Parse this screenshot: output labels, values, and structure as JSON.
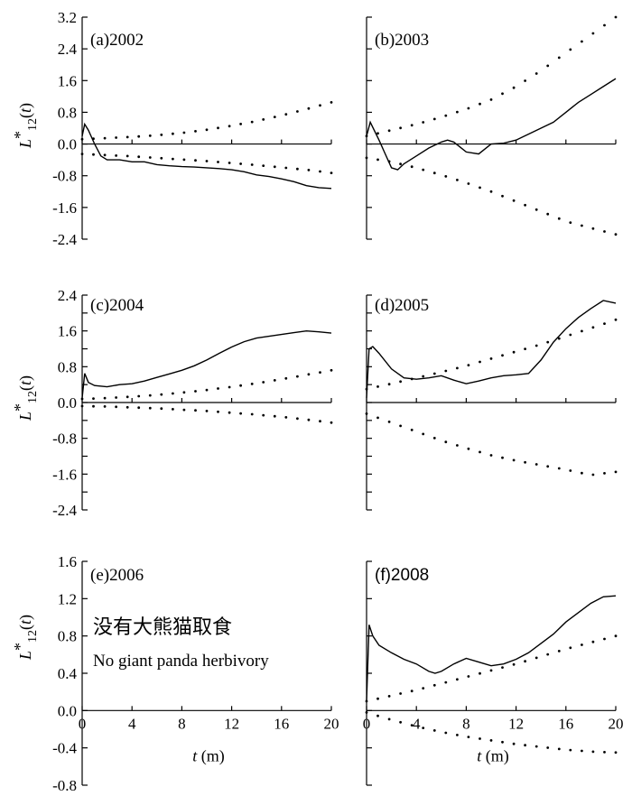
{
  "chart_data": [
    {
      "type": "line",
      "panel": "(a)2002",
      "ylabel": "L*12(t)",
      "xlim": [
        0,
        20
      ],
      "ylim": [
        -2.4,
        3.2
      ],
      "yticks": [
        "3.2",
        "2.4",
        "1.6",
        "0.8",
        "0.0",
        "-0.8",
        "-1.6",
        "-2.4"
      ],
      "xticks": [],
      "zero_line": true,
      "series": [
        {
          "style": "solid",
          "x": [
            0,
            0.2,
            0.5,
            1,
            1.5,
            2,
            3,
            4,
            5,
            6,
            7,
            8,
            9,
            10,
            11,
            12,
            13,
            14,
            15,
            16,
            17,
            18,
            19,
            20
          ],
          "values": [
            0.2,
            0.5,
            0.35,
            0.0,
            -0.3,
            -0.4,
            -0.4,
            -0.45,
            -0.45,
            -0.52,
            -0.55,
            -0.57,
            -0.58,
            -0.6,
            -0.62,
            -0.65,
            -0.7,
            -0.78,
            -0.82,
            -0.88,
            -0.95,
            -1.05,
            -1.1,
            -1.12
          ]
        },
        {
          "style": "dotted",
          "x": [
            0,
            2,
            4,
            6,
            8,
            10,
            12,
            14,
            16,
            18,
            20
          ],
          "values": [
            0.12,
            0.15,
            0.18,
            0.22,
            0.28,
            0.36,
            0.46,
            0.58,
            0.72,
            0.88,
            1.05
          ]
        },
        {
          "style": "dotted",
          "x": [
            0,
            2,
            4,
            6,
            8,
            10,
            12,
            14,
            16,
            18,
            20
          ],
          "values": [
            -0.25,
            -0.28,
            -0.31,
            -0.35,
            -0.39,
            -0.43,
            -0.48,
            -0.53,
            -0.59,
            -0.65,
            -0.73
          ]
        }
      ]
    },
    {
      "type": "line",
      "panel": "(b)2003",
      "ylabel": "",
      "xlim": [
        0,
        20
      ],
      "ylim": [
        -2.4,
        3.2
      ],
      "yticks": [],
      "xticks": [],
      "zero_line": true,
      "series": [
        {
          "style": "solid",
          "x": [
            0,
            0.3,
            1,
            1.5,
            2,
            2.5,
            3,
            4,
            5,
            6,
            6.5,
            7,
            8,
            9,
            10,
            11,
            12,
            13,
            14,
            15,
            16,
            17,
            18,
            19,
            20
          ],
          "values": [
            0.2,
            0.55,
            0.1,
            -0.25,
            -0.6,
            -0.65,
            -0.5,
            -0.3,
            -0.1,
            0.05,
            0.1,
            0.05,
            -0.2,
            -0.25,
            0.0,
            0.02,
            0.1,
            0.25,
            0.4,
            0.55,
            0.8,
            1.05,
            1.25,
            1.45,
            1.65
          ]
        },
        {
          "style": "dotted",
          "x": [
            0,
            2,
            4,
            6,
            8,
            10,
            12,
            14,
            16,
            18,
            20
          ],
          "values": [
            0.2,
            0.35,
            0.5,
            0.68,
            0.88,
            1.12,
            1.45,
            1.85,
            2.3,
            2.75,
            3.2
          ]
        },
        {
          "style": "dotted",
          "x": [
            0,
            2,
            4,
            6,
            8,
            10,
            12,
            14,
            16,
            18,
            20
          ],
          "values": [
            -0.35,
            -0.45,
            -0.6,
            -0.78,
            -0.98,
            -1.2,
            -1.45,
            -1.7,
            -1.95,
            -2.12,
            -2.28
          ]
        }
      ]
    },
    {
      "type": "line",
      "panel": "(c)2004",
      "ylabel": "L*12(t)",
      "xlim": [
        0,
        20
      ],
      "ylim": [
        -2.4,
        2.4
      ],
      "yticks": [
        "2.4",
        "1.6",
        "0.8",
        "0.0",
        "-0.8",
        "-1.6",
        "-2.4"
      ],
      "xticks": [],
      "zero_line": true,
      "series": [
        {
          "style": "solid",
          "x": [
            0,
            0.2,
            0.5,
            1,
            2,
            3,
            4,
            5,
            6,
            7,
            8,
            9,
            10,
            11,
            12,
            13,
            14,
            15,
            16,
            17,
            18,
            19,
            20
          ],
          "values": [
            0.1,
            0.65,
            0.45,
            0.38,
            0.35,
            0.4,
            0.42,
            0.48,
            0.56,
            0.64,
            0.72,
            0.82,
            0.95,
            1.1,
            1.24,
            1.36,
            1.44,
            1.48,
            1.52,
            1.56,
            1.6,
            1.58,
            1.55
          ]
        },
        {
          "style": "dotted",
          "x": [
            0,
            2,
            4,
            6,
            8,
            10,
            12,
            14,
            16,
            18,
            20
          ],
          "values": [
            0.08,
            0.1,
            0.13,
            0.17,
            0.22,
            0.28,
            0.35,
            0.43,
            0.52,
            0.62,
            0.72
          ]
        },
        {
          "style": "dotted",
          "x": [
            0,
            2,
            4,
            6,
            8,
            10,
            12,
            14,
            16,
            18,
            20
          ],
          "values": [
            -0.08,
            -0.09,
            -0.11,
            -0.13,
            -0.16,
            -0.19,
            -0.23,
            -0.27,
            -0.32,
            -0.38,
            -0.45
          ]
        }
      ]
    },
    {
      "type": "line",
      "panel": "(d)2005",
      "ylabel": "",
      "xlim": [
        0,
        20
      ],
      "ylim": [
        -2.4,
        2.4
      ],
      "yticks": [],
      "xticks": [],
      "zero_line": true,
      "series": [
        {
          "style": "solid",
          "x": [
            0,
            0.2,
            0.5,
            1,
            2,
            3,
            4,
            5,
            6,
            7,
            8,
            9,
            10,
            11,
            12,
            13,
            14,
            15,
            16,
            17,
            18,
            19,
            20
          ],
          "values": [
            0.1,
            1.2,
            1.25,
            1.1,
            0.75,
            0.55,
            0.52,
            0.55,
            0.6,
            0.5,
            0.42,
            0.48,
            0.55,
            0.6,
            0.62,
            0.65,
            0.95,
            1.35,
            1.65,
            1.9,
            2.1,
            2.28,
            2.22
          ]
        },
        {
          "style": "dotted",
          "x": [
            0,
            2,
            4,
            6,
            8,
            10,
            12,
            14,
            16,
            18,
            20
          ],
          "values": [
            0.3,
            0.42,
            0.55,
            0.68,
            0.82,
            0.98,
            1.14,
            1.3,
            1.48,
            1.66,
            1.85
          ]
        },
        {
          "style": "dotted",
          "x": [
            0,
            2,
            4,
            6,
            8,
            10,
            12,
            14,
            16,
            18,
            20
          ],
          "values": [
            -0.25,
            -0.45,
            -0.65,
            -0.85,
            -1.02,
            -1.18,
            -1.3,
            -1.4,
            -1.5,
            -1.62,
            -1.55
          ]
        }
      ]
    },
    {
      "type": "line",
      "panel": "(e)2006",
      "ylabel": "L*12(t)",
      "xlabel": "t (m)",
      "xlim": [
        0,
        20
      ],
      "ylim": [
        -0.8,
        1.6
      ],
      "yticks": [
        "1.6",
        "1.2",
        "0.8",
        "0.4",
        "0.0",
        "-0.4",
        "-0.8"
      ],
      "xticks": [
        "0",
        "4",
        "8",
        "12",
        "16",
        "20"
      ],
      "zero_line": true,
      "annotations": [
        "没有大熊猫取食",
        "No giant panda herbivory"
      ],
      "series": []
    },
    {
      "type": "line",
      "panel": "(f)2008",
      "ylabel": "",
      "xlabel": "t (m)",
      "xlim": [
        0,
        20
      ],
      "ylim": [
        -0.8,
        1.6
      ],
      "yticks": [],
      "xticks": [
        "0",
        "4",
        "8",
        "12",
        "16",
        "20"
      ],
      "zero_line": true,
      "series": [
        {
          "style": "solid",
          "x": [
            0,
            0.2,
            0.5,
            1,
            2,
            3,
            4,
            5,
            5.5,
            6,
            7,
            8,
            9,
            10,
            11,
            12,
            13,
            14,
            15,
            16,
            17,
            18,
            19,
            20
          ],
          "values": [
            0.1,
            0.92,
            0.8,
            0.7,
            0.62,
            0.55,
            0.5,
            0.42,
            0.4,
            0.42,
            0.5,
            0.56,
            0.52,
            0.48,
            0.5,
            0.55,
            0.62,
            0.72,
            0.82,
            0.95,
            1.05,
            1.15,
            1.22,
            1.23
          ]
        },
        {
          "style": "dotted",
          "x": [
            0,
            2,
            4,
            6,
            8,
            10,
            12,
            14,
            16,
            18,
            20
          ],
          "values": [
            0.1,
            0.16,
            0.22,
            0.29,
            0.36,
            0.43,
            0.5,
            0.58,
            0.66,
            0.73,
            0.8
          ]
        },
        {
          "style": "dotted",
          "x": [
            0,
            2,
            4,
            6,
            8,
            10,
            12,
            14,
            16,
            18,
            20
          ],
          "values": [
            -0.02,
            -0.1,
            -0.17,
            -0.23,
            -0.28,
            -0.32,
            -0.36,
            -0.39,
            -0.42,
            -0.44,
            -0.45
          ]
        }
      ]
    }
  ]
}
